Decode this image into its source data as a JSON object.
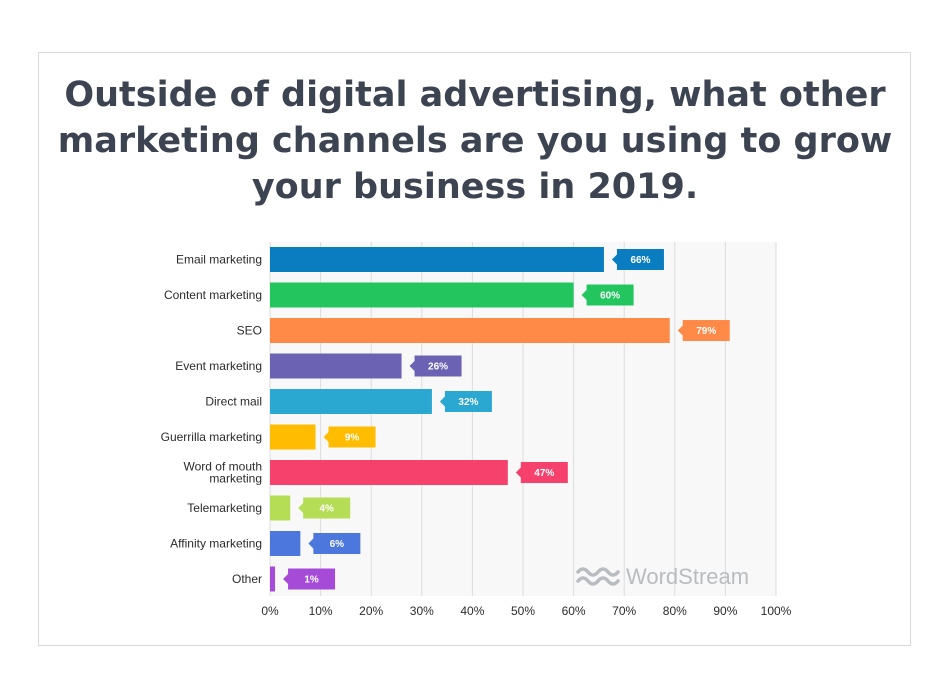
{
  "watermark": "WordStream",
  "chart_data": {
    "type": "bar",
    "orientation": "horizontal",
    "title": "Outside of digital advertising, what other marketing channels are you using to grow your business in 2019.",
    "categories": [
      "Email marketing",
      "Content marketing",
      "SEO",
      "Event marketing",
      "Direct mail",
      "Guerrilla marketing",
      "Word of mouth marketing",
      "Telemarketing",
      "Affinity marketing",
      "Other"
    ],
    "values": [
      66,
      60,
      79,
      26,
      32,
      9,
      47,
      4,
      6,
      1
    ],
    "value_labels": [
      "66%",
      "60%",
      "79%",
      "26%",
      "32%",
      "9%",
      "47%",
      "4%",
      "6%",
      "1%"
    ],
    "colors": [
      "#0a7dc1",
      "#22c55e",
      "#ff8a47",
      "#6b62b3",
      "#2ba8d2",
      "#ffbc00",
      "#f5416c",
      "#b5dd55",
      "#4c78dd",
      "#a54bd8"
    ],
    "xlim": [
      0,
      100
    ],
    "xticks": [
      0,
      10,
      20,
      30,
      40,
      50,
      60,
      70,
      80,
      90,
      100
    ],
    "xtick_labels": [
      "0%",
      "10%",
      "20%",
      "30%",
      "40%",
      "50%",
      "60%",
      "70%",
      "80%",
      "90%",
      "100%"
    ],
    "grid": true,
    "legend": "none"
  }
}
